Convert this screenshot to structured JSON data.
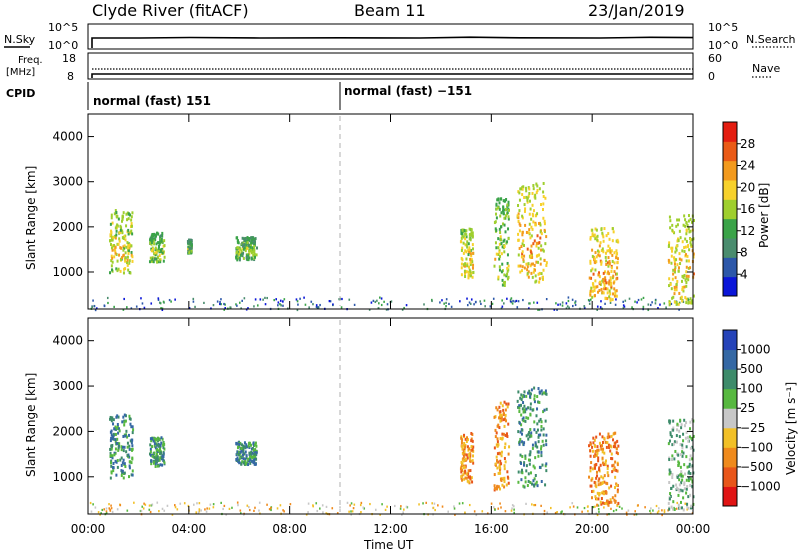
{
  "header": {
    "station": "Clyde River (fitACF)",
    "beam": "Beam 11",
    "date": "23/Jan/2019"
  },
  "noise_panel": {
    "left_label": "N.Sky",
    "right_label": "N.Search",
    "left_ticks": [
      "10^5",
      "10^0"
    ],
    "right_ticks": [
      "10^5",
      "10^0"
    ]
  },
  "freq_panel": {
    "left_label_1": "Freq.",
    "left_label_2": "[MHz]",
    "cpid_label": "CPID",
    "right_label": "Nave",
    "left_ticks": [
      "18",
      "8"
    ],
    "right_ticks": [
      "60",
      "0"
    ]
  },
  "cpid": {
    "segments": [
      "normal (fast) 151",
      "normal (fast) −151"
    ]
  },
  "colors": {
    "power_scale": [
      "#0b16d8",
      "#2c57a9",
      "#4a8c6e",
      "#3aa348",
      "#9fcf2e",
      "#f7d12b",
      "#f39a1d",
      "#ea5a16",
      "#e41d10"
    ],
    "velocity_scale": [
      "#2543b8",
      "#3568a4",
      "#3d8b6a",
      "#57b83f",
      "#c7c7c7",
      "#f2c027",
      "#ef8a1c",
      "#e8561a",
      "#e01414"
    ]
  },
  "chart_data": [
    {
      "type": "heatmap",
      "quantity": "Power",
      "ylabel": "Slant Range [km]",
      "ylim": [
        180,
        4500
      ],
      "yticks": [
        "1000",
        "2000",
        "3000",
        "4000"
      ],
      "xlim_hours": [
        0,
        24
      ],
      "xticks": [
        "00:00",
        "04:00",
        "08:00",
        "12:00",
        "16:00",
        "20:00",
        "00:00"
      ],
      "colorbar": {
        "label": "Power [dB]",
        "ticks": [
          "4",
          "8",
          "12",
          "16",
          "20",
          "24",
          "28"
        ],
        "range": [
          0,
          32
        ]
      },
      "echo_regions": [
        {
          "start": "00:50",
          "end": "01:45",
          "range_km": [
            1000,
            2400
          ],
          "power_db": 22
        },
        {
          "start": "02:25",
          "end": "03:00",
          "range_km": [
            1250,
            1900
          ],
          "power_db": 16
        },
        {
          "start": "03:55",
          "end": "04:05",
          "range_km": [
            1450,
            1750
          ],
          "power_db": 12
        },
        {
          "start": "05:50",
          "end": "06:40",
          "range_km": [
            1300,
            1800
          ],
          "power_db": 14
        },
        {
          "start": "14:45",
          "end": "15:15",
          "range_km": [
            900,
            2000
          ],
          "power_db": 22
        },
        {
          "start": "16:05",
          "end": "16:40",
          "range_km": [
            700,
            2700
          ],
          "power_db": 18
        },
        {
          "start": "17:00",
          "end": "18:10",
          "range_km": [
            800,
            3000
          ],
          "power_db": 26
        },
        {
          "start": "19:50",
          "end": "21:00",
          "range_km": [
            400,
            2000
          ],
          "power_db": 28
        },
        {
          "start": "23:00",
          "end": "24:00",
          "range_km": [
            300,
            2300
          ],
          "power_db": 24
        }
      ]
    },
    {
      "type": "heatmap",
      "quantity": "Velocity",
      "ylabel": "Slant Range [km]",
      "ylim": [
        180,
        4500
      ],
      "yticks": [
        "1000",
        "2000",
        "3000",
        "4000"
      ],
      "xlim_hours": [
        0,
        24
      ],
      "xticks": [
        "00:00",
        "04:00",
        "08:00",
        "12:00",
        "16:00",
        "20:00",
        "00:00"
      ],
      "xlabel": "Time UT",
      "colorbar": {
        "label": "Velocity [m s⁻¹]",
        "ticks": [
          "1000",
          "500",
          "100",
          "25",
          "−25",
          "−100",
          "−500",
          "−1000"
        ]
      },
      "echo_regions": [
        {
          "start": "00:50",
          "end": "01:45",
          "range_km": [
            1000,
            2400
          ],
          "velocity_ms": 200
        },
        {
          "start": "02:25",
          "end": "03:00",
          "range_km": [
            1250,
            1900
          ],
          "velocity_ms": 150
        },
        {
          "start": "05:50",
          "end": "06:40",
          "range_km": [
            1300,
            1800
          ],
          "velocity_ms": 120
        },
        {
          "start": "14:45",
          "end": "15:15",
          "range_km": [
            900,
            2000
          ],
          "velocity_ms": -300
        },
        {
          "start": "16:05",
          "end": "16:40",
          "range_km": [
            700,
            2700
          ],
          "velocity_ms": -200
        },
        {
          "start": "17:00",
          "end": "18:10",
          "range_km": [
            800,
            3000
          ],
          "velocity_ms": 150
        },
        {
          "start": "19:50",
          "end": "21:00",
          "range_km": [
            400,
            2000
          ],
          "velocity_ms": -250
        },
        {
          "start": "23:00",
          "end": "24:00",
          "range_km": [
            300,
            2300
          ],
          "velocity_ms": 100
        }
      ]
    }
  ]
}
